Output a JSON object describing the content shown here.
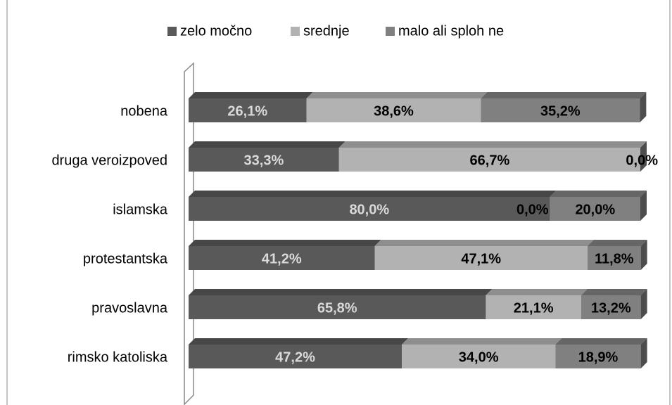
{
  "chart_data": {
    "type": "stacked_bar_horizontal",
    "categories": [
      "nobena",
      "druga veroizpoved",
      "islamska",
      "protestantska",
      "pravoslavna",
      "rimsko katoliska"
    ],
    "series": [
      {
        "name": "zelo močno",
        "color": "#595959",
        "values": [
          26.1,
          33.3,
          80.0,
          41.2,
          65.8,
          47.2
        ],
        "value_labels": [
          "26,1%",
          "33,3%",
          "80,0%",
          "41,2%",
          "65,8%",
          "47,2%"
        ]
      },
      {
        "name": "srednje",
        "color": "#b2b2b2",
        "values": [
          38.6,
          66.7,
          0.0,
          47.1,
          21.1,
          34.0
        ],
        "value_labels": [
          "38,6%",
          "66,7%",
          "0,0%",
          "47,1%",
          "21,1%",
          "34,0%"
        ]
      },
      {
        "name": "malo ali sploh ne",
        "color": "#808080",
        "values": [
          35.2,
          0.0,
          20.0,
          11.8,
          13.2,
          18.9
        ],
        "value_labels": [
          "35,2%",
          "0,0%",
          "20,0%",
          "11,8%",
          "13,2%",
          "18,9%"
        ]
      }
    ],
    "xlim": [
      0,
      100
    ],
    "legend": "top"
  }
}
